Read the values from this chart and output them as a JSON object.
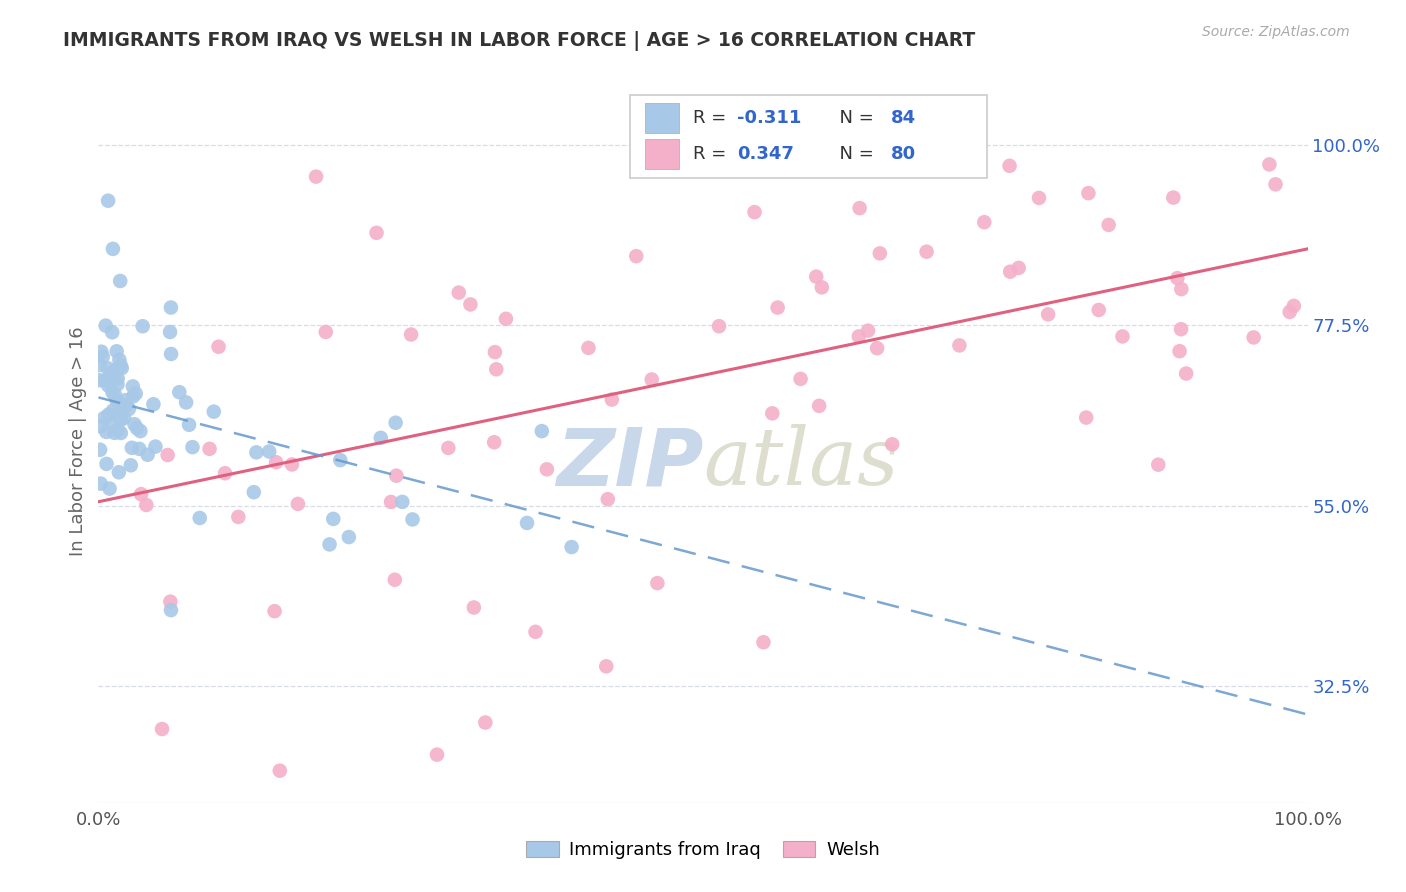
{
  "title": "IMMIGRANTS FROM IRAQ VS WELSH IN LABOR FORCE | AGE > 16 CORRELATION CHART",
  "source": "Source: ZipAtlas.com",
  "ylabel": "In Labor Force | Age > 16",
  "iraq_R": -0.311,
  "iraq_N": 84,
  "welsh_R": 0.347,
  "welsh_N": 80,
  "iraq_color": "#a8c8e8",
  "welsh_color": "#f4b0c8",
  "iraq_line_color": "#6699cc",
  "welsh_line_color": "#e06080",
  "background_color": "#ffffff",
  "grid_color": "#d8dce8",
  "title_color": "#333333",
  "source_color": "#aaaaaa",
  "watermark_color": "#c8d8ea",
  "x_min": 0.0,
  "x_max": 1.0,
  "y_min": 0.18,
  "y_max": 1.08,
  "y_ticks": [
    0.325,
    0.55,
    0.775,
    1.0
  ],
  "y_tick_labels": [
    "32.5%",
    "55.0%",
    "77.5%",
    "100.0%"
  ],
  "iraq_line_x0": 0.0,
  "iraq_line_y0": 0.685,
  "iraq_line_x1": 1.0,
  "iraq_line_y1": 0.29,
  "welsh_line_x0": 0.0,
  "welsh_line_y0": 0.555,
  "welsh_line_x1": 1.0,
  "welsh_line_y1": 0.87
}
